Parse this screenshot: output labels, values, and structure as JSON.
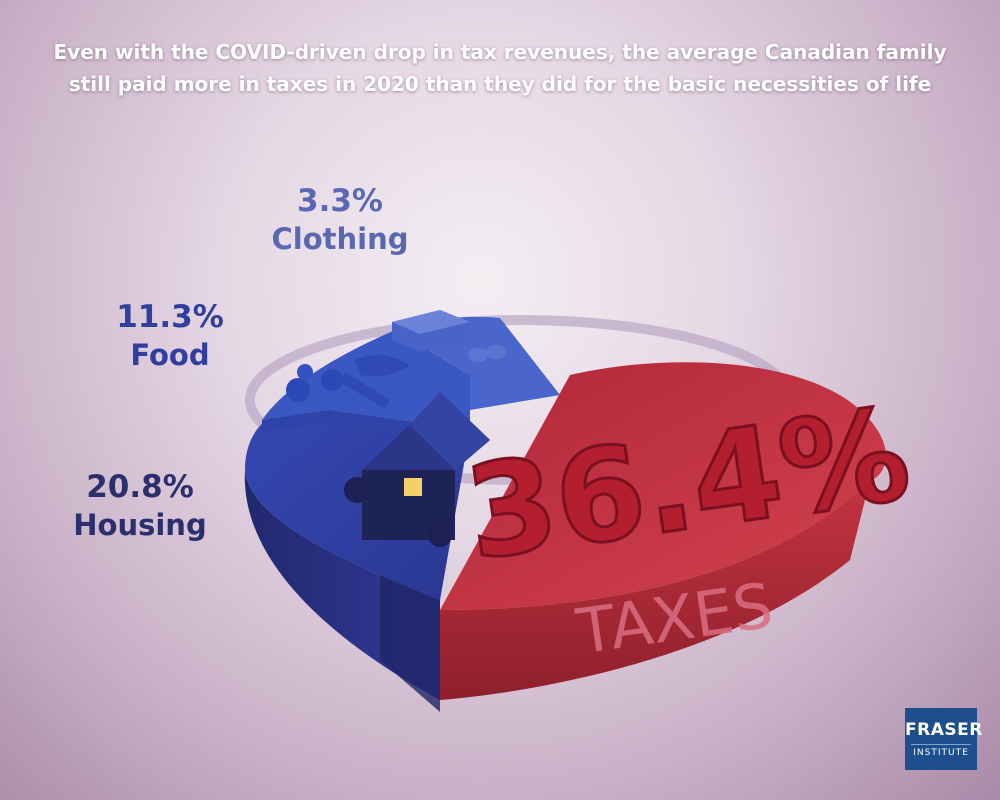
{
  "title_lines": [
    "Even with the COVID-driven drop in tax revenues, the average Canadian family",
    "still paid more in taxes in 2020 than they did for the basic necessities of life"
  ],
  "chart_data": {
    "type": "pie",
    "title": "Even with the COVID-driven drop in tax revenues, the average Canadian family still paid more in taxes in 2020 than they did for the basic necessities of life",
    "unit": "%",
    "slices": [
      {
        "name": "Taxes",
        "value": 36.4,
        "value_label": "36.4%",
        "name_label": "TAXES",
        "color": "#c8323e"
      },
      {
        "name": "Housing",
        "value": 20.8,
        "value_label": "20.8%",
        "name_label": "Housing",
        "color": "#2f3a96"
      },
      {
        "name": "Food",
        "value": 11.3,
        "value_label": "11.3%",
        "name_label": "Food",
        "color": "#3553b8"
      },
      {
        "name": "Clothing",
        "value": 3.3,
        "value_label": "3.3%",
        "name_label": "Clothing",
        "color": "#4d67c9"
      }
    ]
  },
  "label_colors": {
    "housing": "#2b2f6e",
    "food": "#2f3f9e",
    "clothing": "#5968b0"
  },
  "logo": {
    "line1": "FRASER",
    "line2": "INSTITUTE",
    "color": "#1d4f8f"
  }
}
